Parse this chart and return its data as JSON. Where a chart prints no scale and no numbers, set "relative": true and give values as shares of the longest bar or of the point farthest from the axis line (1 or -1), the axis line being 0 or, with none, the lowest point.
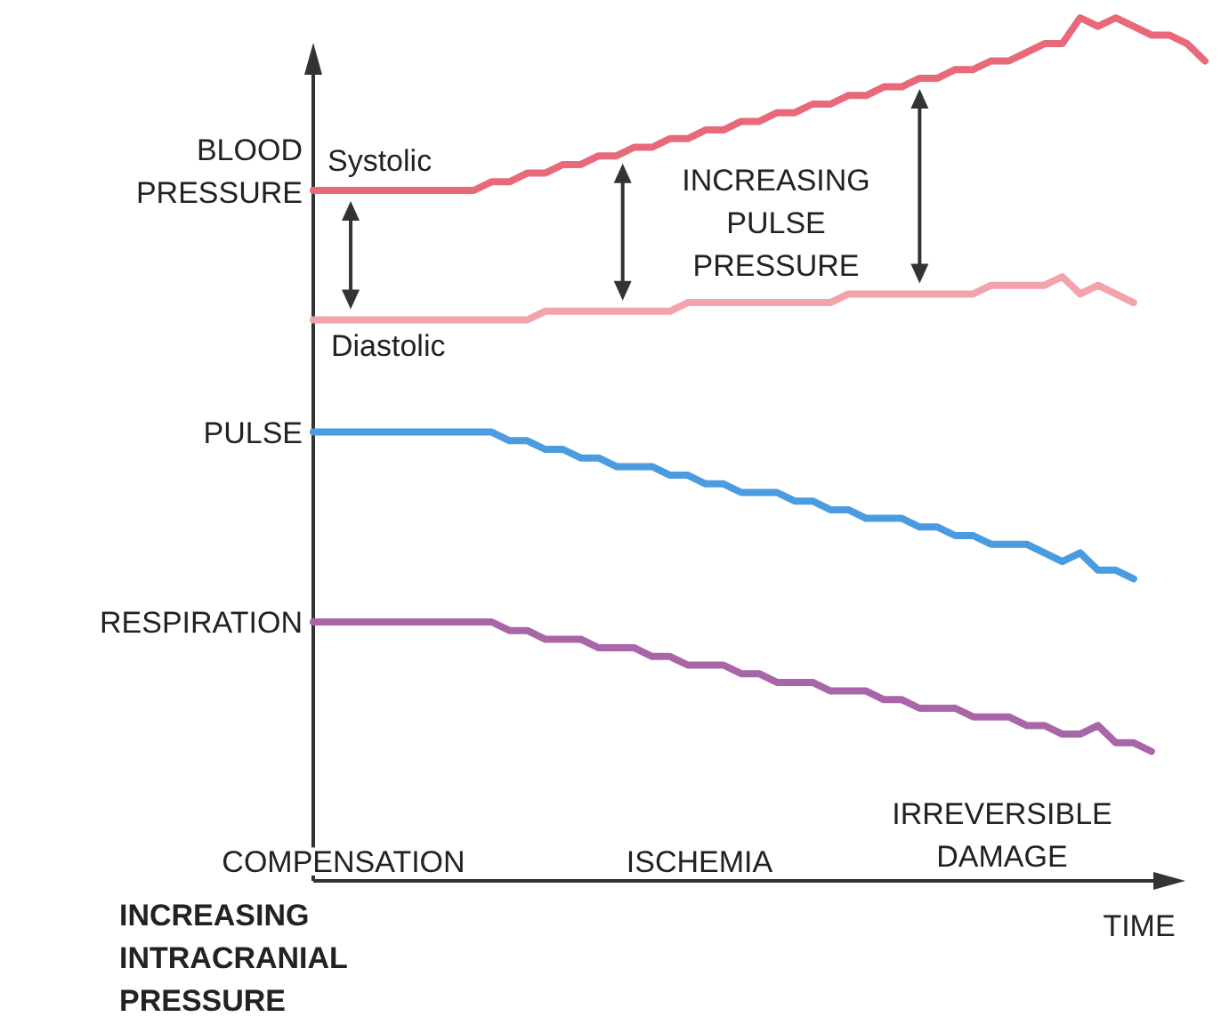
{
  "chart_data": {
    "type": "line",
    "relative": true,
    "xlabel": "TIME",
    "categories": [
      null,
      null,
      null,
      null,
      null,
      null,
      null,
      null,
      null,
      null,
      null,
      null,
      null,
      null,
      null,
      null,
      null,
      null,
      null,
      null,
      null,
      null,
      null,
      null,
      null,
      null,
      null,
      null,
      null,
      null,
      null,
      null,
      null,
      null,
      null,
      null,
      null,
      null,
      null,
      null,
      null,
      null,
      null,
      null,
      null,
      null,
      null,
      null,
      null,
      null,
      null
    ],
    "annotations": [
      "BLOOD PRESSURE",
      "INCREASING PULSE PRESSURE",
      "COMPENSATION",
      "ISCHEMIA",
      "IRREVERSIBLE DAMAGE",
      "INCREASING INTRACRANIAL PRESSURE"
    ],
    "series": [
      {
        "name": "Systolic",
        "color": "#e8697a",
        "values": [
          0.8,
          0.8,
          0.8,
          0.8,
          0.8,
          0.8,
          0.8,
          0.8,
          0.8,
          0.8,
          0.81,
          0.81,
          0.82,
          0.82,
          0.83,
          0.83,
          0.84,
          0.84,
          0.85,
          0.85,
          0.86,
          0.86,
          0.87,
          0.87,
          0.88,
          0.88,
          0.89,
          0.89,
          0.9,
          0.9,
          0.91,
          0.91,
          0.92,
          0.92,
          0.93,
          0.93,
          0.94,
          0.94,
          0.95,
          0.95,
          0.96,
          0.97,
          0.97,
          1,
          0.99,
          1,
          0.99,
          0.98,
          0.98,
          0.97,
          0.95
        ]
      },
      {
        "name": "Diastolic",
        "color": "#f2a3ab",
        "values": [
          0.65,
          0.65,
          0.65,
          0.65,
          0.65,
          0.65,
          0.65,
          0.65,
          0.65,
          0.65,
          0.65,
          0.65,
          0.65,
          0.66,
          0.66,
          0.66,
          0.66,
          0.66,
          0.66,
          0.66,
          0.66,
          0.67,
          0.67,
          0.67,
          0.67,
          0.67,
          0.67,
          0.67,
          0.67,
          0.67,
          0.68,
          0.68,
          0.68,
          0.68,
          0.68,
          0.68,
          0.68,
          0.68,
          0.69,
          0.69,
          0.69,
          0.69,
          0.7,
          0.68,
          0.69,
          0.68,
          0.67,
          null,
          null,
          null,
          null
        ]
      },
      {
        "name": "PULSE",
        "color": "#4a9be0",
        "values": [
          0.52,
          0.52,
          0.52,
          0.52,
          0.52,
          0.52,
          0.52,
          0.52,
          0.52,
          0.52,
          0.52,
          0.51,
          0.51,
          0.5,
          0.5,
          0.49,
          0.49,
          0.48,
          0.48,
          0.48,
          0.47,
          0.47,
          0.46,
          0.46,
          0.45,
          0.45,
          0.45,
          0.44,
          0.44,
          0.43,
          0.43,
          0.42,
          0.42,
          0.42,
          0.41,
          0.41,
          0.4,
          0.4,
          0.39,
          0.39,
          0.39,
          0.38,
          0.37,
          0.38,
          0.36,
          0.36,
          0.35,
          null,
          null,
          null,
          null
        ]
      },
      {
        "name": "RESPIRATION",
        "color": "#a865a8",
        "values": [
          0.3,
          0.3,
          0.3,
          0.3,
          0.3,
          0.3,
          0.3,
          0.3,
          0.3,
          0.3,
          0.3,
          0.29,
          0.29,
          0.28,
          0.28,
          0.28,
          0.27,
          0.27,
          0.27,
          0.26,
          0.26,
          0.25,
          0.25,
          0.25,
          0.24,
          0.24,
          0.23,
          0.23,
          0.23,
          0.22,
          0.22,
          0.22,
          0.21,
          0.21,
          0.2,
          0.2,
          0.2,
          0.19,
          0.19,
          0.19,
          0.18,
          0.18,
          0.17,
          0.17,
          0.18,
          0.16,
          0.16,
          0.15,
          null,
          null,
          null
        ]
      }
    ]
  }
}
